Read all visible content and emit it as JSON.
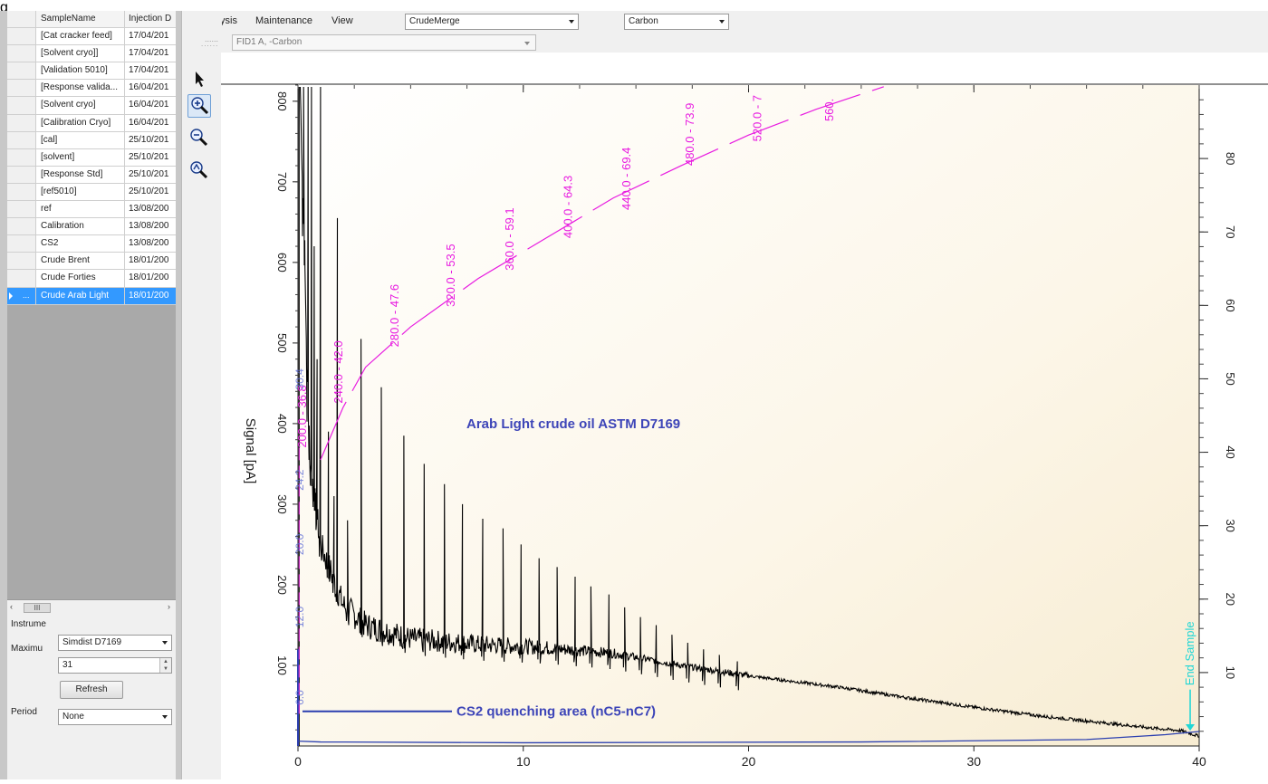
{
  "caption": "g",
  "grid": {
    "headers": [
      "SampleName",
      "Injection D"
    ],
    "rows": [
      {
        "name": "[Cat cracker feed]",
        "date": "17/04/201"
      },
      {
        "name": "[Solvent cryo]]",
        "date": "17/04/201"
      },
      {
        "name": "[Validation 5010]",
        "date": "17/04/201"
      },
      {
        "name": "[Response valida...",
        "date": "16/04/201"
      },
      {
        "name": "[Solvent cryo]",
        "date": "16/04/201"
      },
      {
        "name": "[Calibration Cryo]",
        "date": "16/04/201"
      },
      {
        "name": "[cal]",
        "date": "25/10/201"
      },
      {
        "name": "[solvent]",
        "date": "25/10/201"
      },
      {
        "name": "[Response Std]",
        "date": "25/10/201"
      },
      {
        "name": "[ref5010]",
        "date": "25/10/201"
      },
      {
        "name": "ref",
        "date": "13/08/200"
      },
      {
        "name": "Calibration",
        "date": "13/08/200"
      },
      {
        "name": "CS2",
        "date": "13/08/200"
      },
      {
        "name": "Crude Brent",
        "date": "18/01/200"
      },
      {
        "name": "Crude Forties",
        "date": "18/01/200"
      },
      {
        "name": "Crude Arab Light",
        "date": "18/01/200"
      }
    ],
    "selected_index": 15,
    "selected_marker": "...",
    "scroll_thumb": "III"
  },
  "controls": {
    "instrument_label": "Instrume",
    "instrument_value": "Simdist D7169",
    "maximum_label": "Maximu",
    "maximum_value": "31",
    "refresh_label": "Refresh",
    "period_label": "Period",
    "period_value": "None"
  },
  "menu": {
    "items": [
      "Analysis",
      "Maintenance",
      "View"
    ],
    "crude_combo": "CrudeMerge",
    "carbon_combo": "Carbon"
  },
  "signal_combo": "FID1 A, -Carbon",
  "tools": [
    "pointer-icon",
    "zoom-in-icon",
    "zoom-out-icon",
    "zoom-reset-icon"
  ],
  "chart_data": {
    "type": "line",
    "xlim": [
      0,
      40
    ],
    "ylim": [
      0,
      820
    ],
    "xticks": [
      0,
      10,
      20,
      30,
      40
    ],
    "yticks": [
      100,
      200,
      300,
      400,
      500,
      600,
      700,
      800
    ],
    "y2ticks": [
      10,
      20,
      30,
      40,
      50,
      60,
      70,
      80
    ],
    "ylabel": "Signal [pA]",
    "annotations": {
      "title": "Arab Light crude oil ASTM D7169",
      "cs2": "CS2 quenching area (nC5-nC7)",
      "end": "End Sample"
    },
    "boiling_labels": [
      {
        "text": "200.0 - 36.8",
        "x": 0.2,
        "y": 370
      },
      {
        "text": "240.0 - 42.0",
        "x": 1.8,
        "y": 425
      },
      {
        "text": "280.0 - 47.6",
        "x": 4.3,
        "y": 495
      },
      {
        "text": "320.0 - 53.5",
        "x": 6.8,
        "y": 545
      },
      {
        "text": "360.0 - 59.1",
        "x": 9.4,
        "y": 590
      },
      {
        "text": "400.0 - 64.3",
        "x": 12.0,
        "y": 630
      },
      {
        "text": "440.0 - 69.4",
        "x": 14.6,
        "y": 665
      },
      {
        "text": "480.0 - 73.9",
        "x": 17.4,
        "y": 720
      },
      {
        "text": "520.0 - 7",
        "x": 20.4,
        "y": 750
      },
      {
        "text": "560.",
        "x": 23.6,
        "y": 775
      }
    ],
    "left_labels": [
      "30.4",
      "24.2",
      "20.0",
      "12.0",
      "6.0"
    ],
    "series": [
      {
        "name": "",
        "color": "#000000",
        "trend": [
          [
            0.1,
            820
          ],
          [
            0.5,
            360
          ],
          [
            1,
            250
          ],
          [
            2,
            175
          ],
          [
            3,
            150
          ],
          [
            5,
            133
          ],
          [
            8,
            126
          ],
          [
            11,
            122
          ],
          [
            14,
            115
          ],
          [
            17,
            100
          ],
          [
            20,
            87
          ],
          [
            24,
            73
          ],
          [
            27,
            60
          ],
          [
            30,
            48
          ],
          [
            33,
            37
          ],
          [
            36,
            28
          ],
          [
            38,
            22
          ],
          [
            39.2,
            19
          ],
          [
            40,
            12
          ]
        ],
        "peaks": [
          {
            "x": 0.25,
            "y": 820
          },
          {
            "x": 0.45,
            "y": 820
          },
          {
            "x": 0.6,
            "y": 820
          },
          {
            "x": 0.72,
            "y": 620
          },
          {
            "x": 0.85,
            "y": 480
          },
          {
            "x": 1.0,
            "y": 820
          },
          {
            "x": 1.35,
            "y": 390
          },
          {
            "x": 1.6,
            "y": 310
          },
          {
            "x": 1.75,
            "y": 655
          },
          {
            "x": 2.2,
            "y": 280
          },
          {
            "x": 2.8,
            "y": 505
          },
          {
            "x": 3.7,
            "y": 445
          },
          {
            "x": 4.7,
            "y": 385
          },
          {
            "x": 5.6,
            "y": 350
          },
          {
            "x": 6.5,
            "y": 325
          },
          {
            "x": 7.3,
            "y": 300
          },
          {
            "x": 8.2,
            "y": 282
          },
          {
            "x": 9.1,
            "y": 270
          },
          {
            "x": 9.9,
            "y": 250
          },
          {
            "x": 10.7,
            "y": 233
          },
          {
            "x": 11.5,
            "y": 222
          },
          {
            "x": 12.3,
            "y": 210
          },
          {
            "x": 13.0,
            "y": 198
          },
          {
            "x": 13.8,
            "y": 188
          },
          {
            "x": 14.5,
            "y": 172
          },
          {
            "x": 15.2,
            "y": 160
          },
          {
            "x": 15.9,
            "y": 150
          },
          {
            "x": 16.6,
            "y": 138
          },
          {
            "x": 17.3,
            "y": 128
          },
          {
            "x": 18.0,
            "y": 120
          },
          {
            "x": 18.7,
            "y": 113
          },
          {
            "x": 19.5,
            "y": 105
          }
        ]
      },
      {
        "name": "",
        "color": "#2b3fb0",
        "points": [
          [
            0,
            6
          ],
          [
            1,
            5
          ],
          [
            10,
            4
          ],
          [
            25,
            5
          ],
          [
            35,
            8
          ],
          [
            38.5,
            14
          ],
          [
            40,
            18
          ]
        ]
      },
      {
        "name": "",
        "color": "#e81be0",
        "points": [
          [
            1.0,
            355
          ],
          [
            2,
            420
          ],
          [
            3,
            470
          ],
          [
            5,
            520
          ],
          [
            8,
            580
          ],
          [
            11,
            630
          ],
          [
            14,
            680
          ],
          [
            17,
            720
          ],
          [
            20,
            758
          ],
          [
            23,
            790
          ],
          [
            26,
            818
          ]
        ]
      }
    ]
  }
}
